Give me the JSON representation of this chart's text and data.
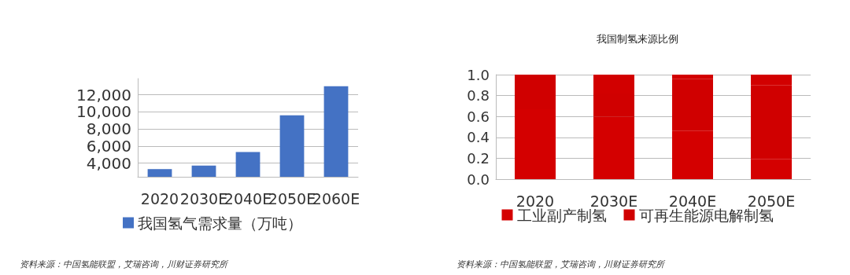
{
  "chart_data": [
    {
      "type": "bar",
      "categories": [
        "2020",
        "2030E",
        "2040E",
        "2050E",
        "2060E"
      ],
      "series": [
        {
          "name": "我国氢气需求量（万吨）",
          "color": "#4472c4",
          "values": [
            3300,
            3700,
            5300,
            9600,
            13000
          ]
        }
      ],
      "ylim": [
        2400,
        13900
      ],
      "yticks": [
        {
          "value": 4000,
          "label": "4,000"
        },
        {
          "value": 6000,
          "label": "6,000"
        },
        {
          "value": 8000,
          "label": "8,000"
        },
        {
          "value": 10000,
          "label": "10,000"
        },
        {
          "value": 12000,
          "label": "12,000"
        }
      ],
      "grid": "y",
      "legend": "bottom",
      "annotations": [
        "资料来源：中国氢能联盟，艾瑞咨询，川财证券研究所"
      ]
    },
    {
      "type": "bar",
      "title": "我国制氢来源比例",
      "categories": [
        "2020",
        "2030E",
        "2040E",
        "2050E"
      ],
      "stacked": true,
      "series": [
        {
          "name": "工业副产制氢",
          "color": "#d40000",
          "values": [
            0.67,
            0.6,
            0.46,
            0.19
          ]
        },
        {
          "name": "可再生能源电解制氢",
          "color": "#d00000",
          "values": [
            0.33,
            0.22,
            0.5,
            0.71
          ]
        },
        {
          "color": "#d20000",
          "values": [
            0,
            0.18,
            0.04,
            0.1
          ]
        }
      ],
      "ylim": [
        0,
        1
      ],
      "yticks": [
        {
          "value": 0,
          "label": "0.0"
        },
        {
          "value": 0.2,
          "label": "0.2"
        },
        {
          "value": 0.4,
          "label": "0.4"
        },
        {
          "value": 0.6,
          "label": "0.6"
        },
        {
          "value": 0.8,
          "label": "0.8"
        },
        {
          "value": 1,
          "label": "1.0"
        }
      ],
      "grid": "y",
      "legend": "bottom",
      "annotations": [
        "资料来源：中国氢能联盟，艾瑞咨询，川财证券研究所"
      ]
    }
  ]
}
